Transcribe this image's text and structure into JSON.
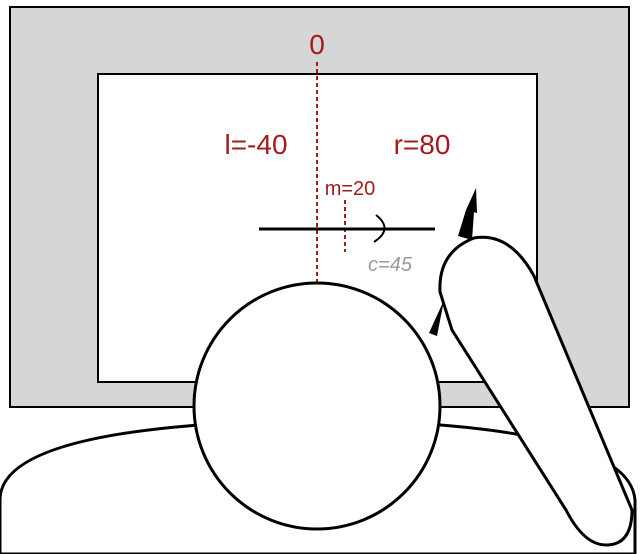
{
  "labels": {
    "origin": "0",
    "left": "l=-40",
    "right": "r=80",
    "middle": "m=20",
    "curvature": "c=45"
  },
  "colors": {
    "frame_fill": "#d6d6d6",
    "screen_fill": "#ffffff",
    "outline": "#000000",
    "accent_red": "#a31c1c",
    "annotation_grey": "#9a9a9a"
  },
  "icons": {
    "head": "head-circle",
    "shoulders": "shoulders-arc",
    "hand": "finger-hand",
    "pen": "stylus-pen"
  }
}
